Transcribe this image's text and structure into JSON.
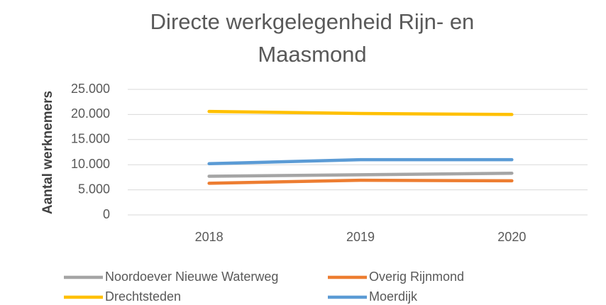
{
  "chart_data": {
    "type": "line",
    "title": "Directe werkgelegenheid Rijn- en Maasmond",
    "y_label": "Aantal werknemers",
    "categories": [
      "2018",
      "2019",
      "2020"
    ],
    "series": [
      {
        "name": "Noordoever Nieuwe Waterweg",
        "color": "#a5a5a5",
        "values": [
          7700,
          8000,
          8300
        ]
      },
      {
        "name": "Overig Rijnmond",
        "color": "#ed7d31",
        "values": [
          6300,
          6900,
          6800
        ]
      },
      {
        "name": "Drechtsteden",
        "color": "#ffc000",
        "values": [
          20600,
          20200,
          20000
        ]
      },
      {
        "name": "Moerdijk",
        "color": "#5b9bd5",
        "values": [
          10200,
          11000,
          11000
        ]
      }
    ],
    "ylim": [
      0,
      25000
    ],
    "yticks": [
      0,
      {
        "value": 5000,
        "label": "5.000"
      },
      {
        "value": 10000,
        "label": "10.000"
      },
      {
        "value": 15000,
        "label": "15.000"
      },
      {
        "value": 20000,
        "label": "20.000"
      },
      {
        "value": 25000,
        "label": "25.000"
      }
    ],
    "grid": true
  }
}
